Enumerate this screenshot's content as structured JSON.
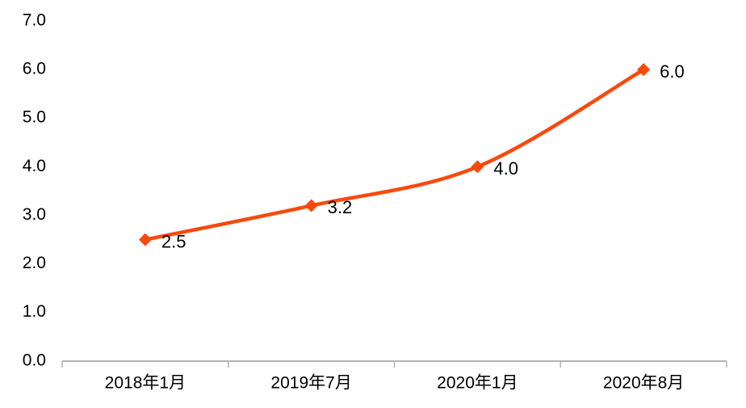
{
  "chart_data": {
    "type": "line",
    "title": "",
    "xlabel": "",
    "ylabel": "",
    "categories": [
      "2018年1月",
      "2019年7月",
      "2020年1月",
      "2020年8月"
    ],
    "series": [
      {
        "name": "series-1",
        "values": [
          2.5,
          3.2,
          4.0,
          6.0
        ],
        "data_labels": [
          "2.5",
          "3.2",
          "4.0",
          "6.0"
        ]
      }
    ],
    "y_ticks": [
      "0.0",
      "1.0",
      "2.0",
      "3.0",
      "4.0",
      "5.0",
      "6.0",
      "7.0"
    ],
    "y_tick_step": 1.0,
    "ylim": [
      0,
      7
    ],
    "grid": false,
    "legend_position": "none",
    "smooth_line": true,
    "marker": "diamond",
    "colors": {
      "line": "#FA490B",
      "marker": "#FA490B",
      "axis": "#B4B4B4",
      "text": "#000000"
    }
  }
}
